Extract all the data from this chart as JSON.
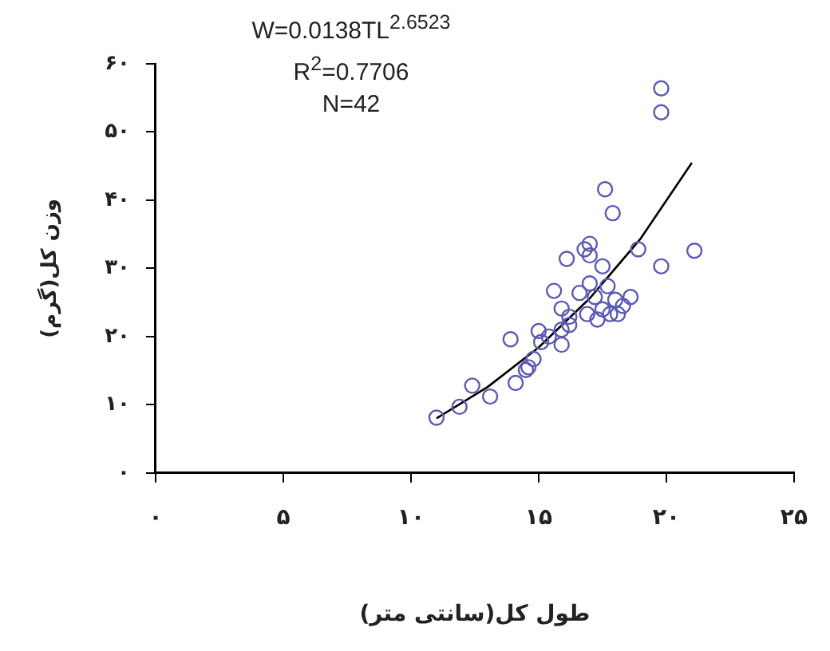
{
  "chart_data": {
    "type": "scatter",
    "xlabel": "طول کل(سانتی متر)",
    "ylabel": "وزن کل(گرم)",
    "annotations": [
      "W=0.0138TL$^{2.6523}$",
      "R$^{2}$=0.7706",
      "N=42"
    ],
    "xlim": [
      0,
      25
    ],
    "ylim": [
      0,
      60
    ],
    "xticks": [
      {
        "value": 0,
        "label": "۰"
      },
      {
        "value": 5,
        "label": "۵"
      },
      {
        "value": 10,
        "label": "۱۰"
      },
      {
        "value": 15,
        "label": "۱۵"
      },
      {
        "value": 20,
        "label": "۲۰"
      },
      {
        "value": 25,
        "label": "۲۵"
      }
    ],
    "yticks": [
      {
        "value": 0,
        "label": "۰"
      },
      {
        "value": 10,
        "label": "۱۰"
      },
      {
        "value": 20,
        "label": "۲۰"
      },
      {
        "value": 30,
        "label": "۳۰"
      },
      {
        "value": 40,
        "label": "۴۰"
      },
      {
        "value": 50,
        "label": "۵۰"
      },
      {
        "value": 60,
        "label": "۶۰"
      }
    ],
    "grid": false,
    "legend": false,
    "marker": "circle",
    "series": [
      {
        "color": "#5a5ab4",
        "x": [
          11.0,
          11.9,
          12.4,
          13.1,
          13.9,
          14.1,
          14.6,
          14.8,
          15.0,
          15.1,
          15.6,
          15.9,
          15.9,
          16.1,
          16.2,
          16.6,
          16.8,
          17.0,
          16.9,
          17.2,
          17.3,
          17.5,
          17.7,
          17.6,
          17.9,
          17.8,
          18.0,
          18.3,
          18.6,
          18.9,
          19.8,
          19.8,
          19.8,
          21.1,
          17.5,
          17.0,
          15.9,
          14.5,
          17.0,
          18.1,
          15.4,
          16.2
        ],
        "values": [
          8.1,
          9.7,
          12.8,
          11.2,
          19.6,
          13.2,
          15.5,
          16.7,
          20.8,
          19.2,
          26.7,
          18.8,
          24.1,
          31.4,
          21.7,
          26.4,
          32.8,
          33.6,
          23.3,
          25.8,
          22.5,
          30.3,
          27.4,
          41.6,
          38.1,
          23.3,
          25.4,
          24.5,
          25.8,
          32.8,
          56.4,
          52.9,
          30.3,
          32.6,
          24.0,
          27.8,
          21.0,
          15.1,
          31.9,
          23.3,
          20.0,
          22.9
        ]
      },
      {
        "type": "line",
        "color": "#000000",
        "marker": "none",
        "x": [
          11,
          13,
          15,
          17,
          19,
          21
        ],
        "values": [
          8.0,
          12.6,
          18.4,
          25.6,
          34.4,
          45.5
        ]
      }
    ]
  }
}
